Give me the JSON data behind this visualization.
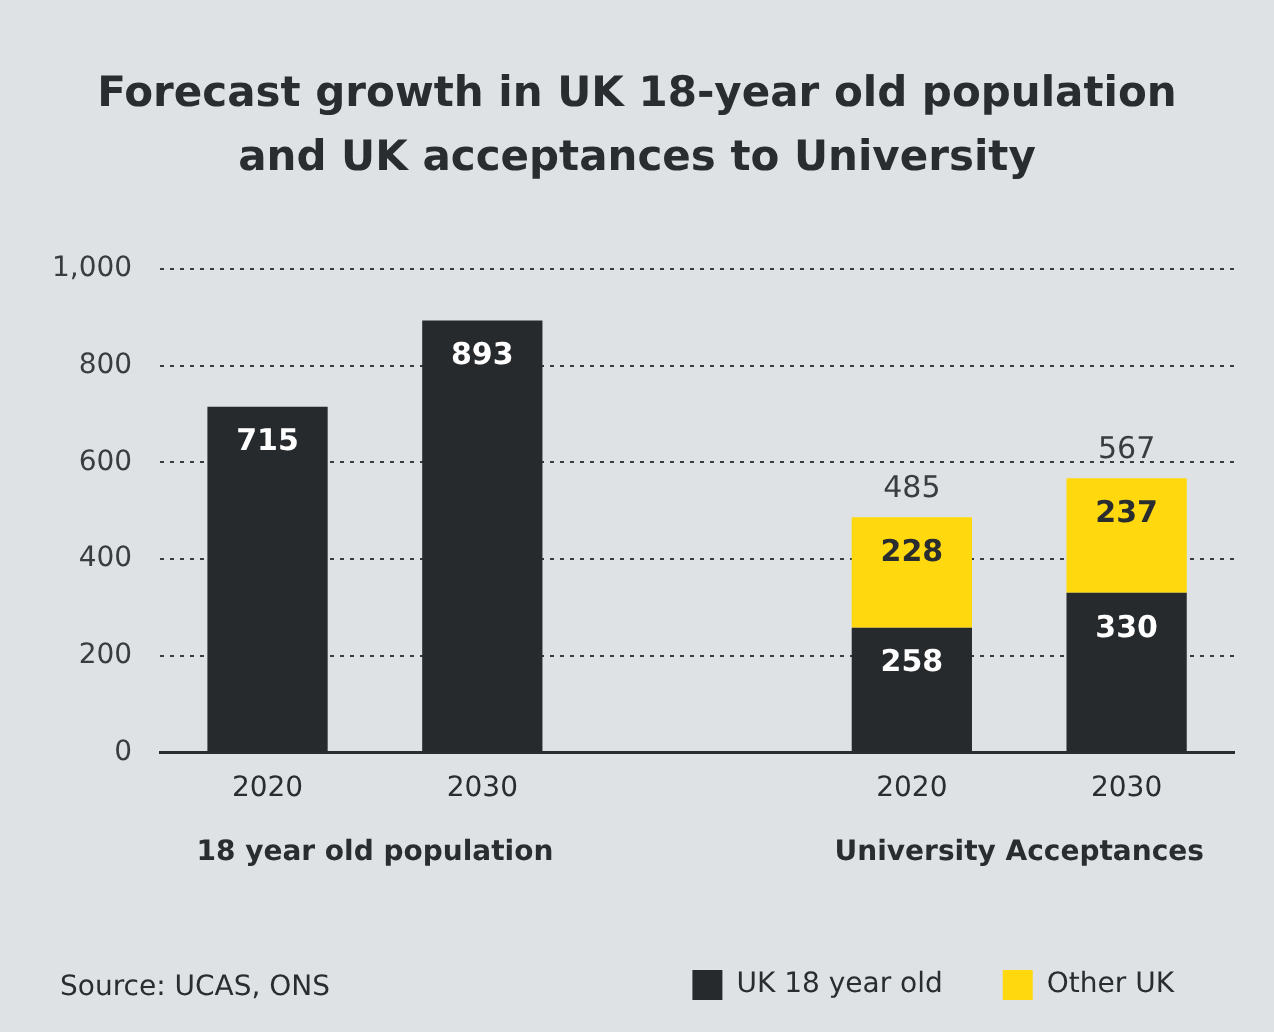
{
  "chart_data": {
    "type": "bar",
    "title": "Forecast growth in UK 18-year old population and UK acceptances to University",
    "categories": [
      "2020",
      "2030",
      null,
      "2020",
      "2030"
    ],
    "series": [
      {
        "name": "UK 18 year old",
        "color": "#272a2d",
        "values": [
          715,
          893,
          null,
          258,
          330
        ]
      },
      {
        "name": "Other UK",
        "color": "#ffd80d",
        "values": [
          null,
          null,
          null,
          228,
          237
        ]
      }
    ],
    "stacked": true,
    "data_labels": true,
    "totals": [
      null,
      null,
      null,
      "485",
      "567"
    ],
    "ylim": [
      0,
      1000
    ],
    "yticks": [
      0,
      200,
      400,
      600,
      800,
      {
        "value": 1000,
        "label": "1,000"
      }
    ],
    "grid": "y",
    "legend": "bottom right",
    "annotations": [
      "18 year old population",
      "University Acceptances",
      "Source: UCAS, ONS"
    ]
  }
}
